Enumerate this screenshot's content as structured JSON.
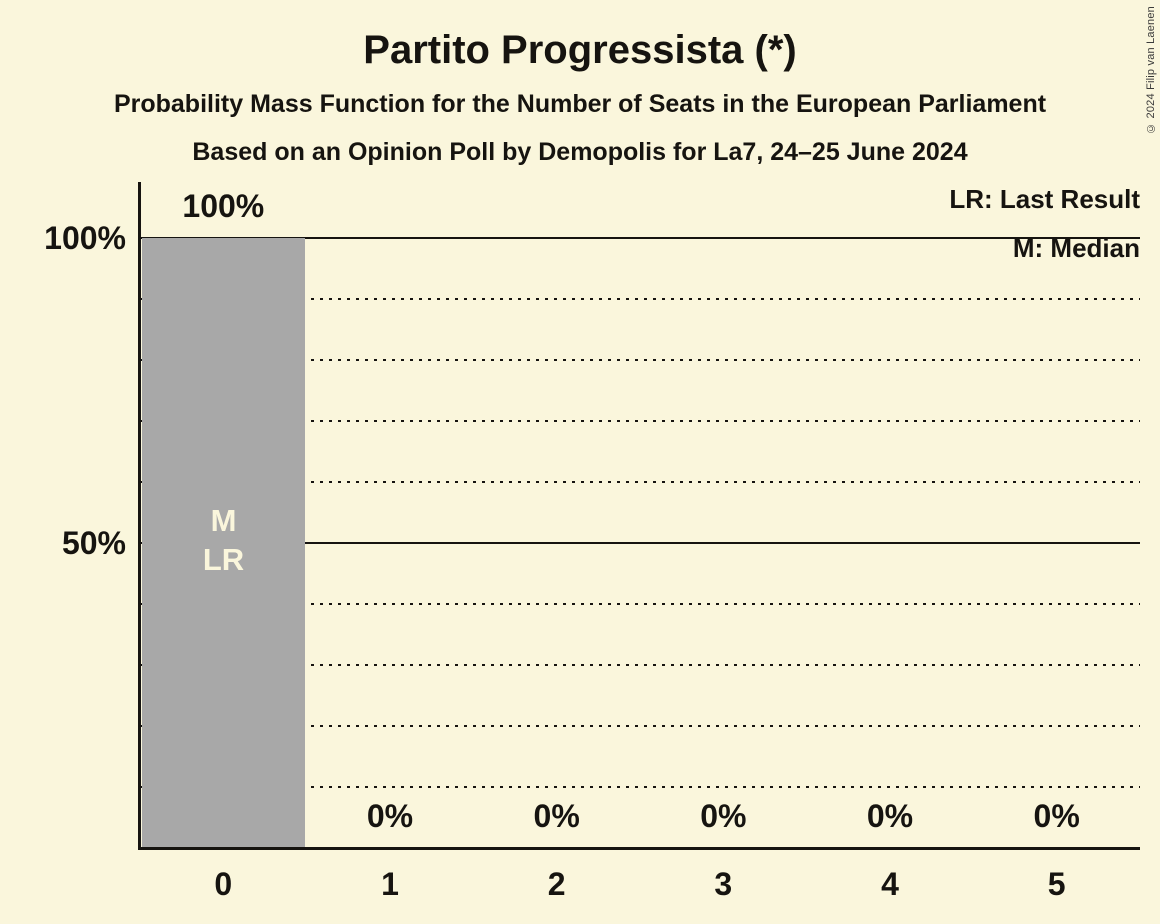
{
  "title": "Partito Progressista (*)",
  "subtitle1": "Probability Mass Function for the Number of Seats in the European Parliament",
  "subtitle2": "Based on an Opinion Poll by Demopolis for La7, 24–25 June 2024",
  "copyright": "© 2024 Filip van Laenen",
  "legend": {
    "lr": "LR: Last Result",
    "m": "M: Median"
  },
  "chart_data": {
    "type": "bar",
    "title": "Partito Progressista (*)",
    "xlabel": "Number of Seats in the European Parliament",
    "ylabel": "Probability",
    "categories": [
      "0",
      "1",
      "2",
      "3",
      "4",
      "5"
    ],
    "values": [
      100,
      0,
      0,
      0,
      0,
      0
    ],
    "value_labels": [
      "100%",
      "0%",
      "0%",
      "0%",
      "0%",
      "0%"
    ],
    "bar_annotations": [
      {
        "category_index": 0,
        "lines": [
          "M",
          "LR"
        ]
      }
    ],
    "median_seats": "0",
    "last_result_seats": "0",
    "ylim": [
      0,
      100
    ],
    "yticks": [
      50,
      100
    ],
    "ytick_labels": [
      "50%",
      "100%"
    ],
    "solid_gridlines": [
      50,
      100
    ],
    "dotted_gridlines": [
      10,
      20,
      30,
      40,
      60,
      70,
      80,
      90
    ],
    "legend_position": "top-right",
    "colors": {
      "background": "#FAF6DC",
      "bar": "#A8A8A8",
      "text": "#161410",
      "bar_label_text": "#FAF6DC",
      "copyright_text": "#3A3A3A"
    }
  }
}
